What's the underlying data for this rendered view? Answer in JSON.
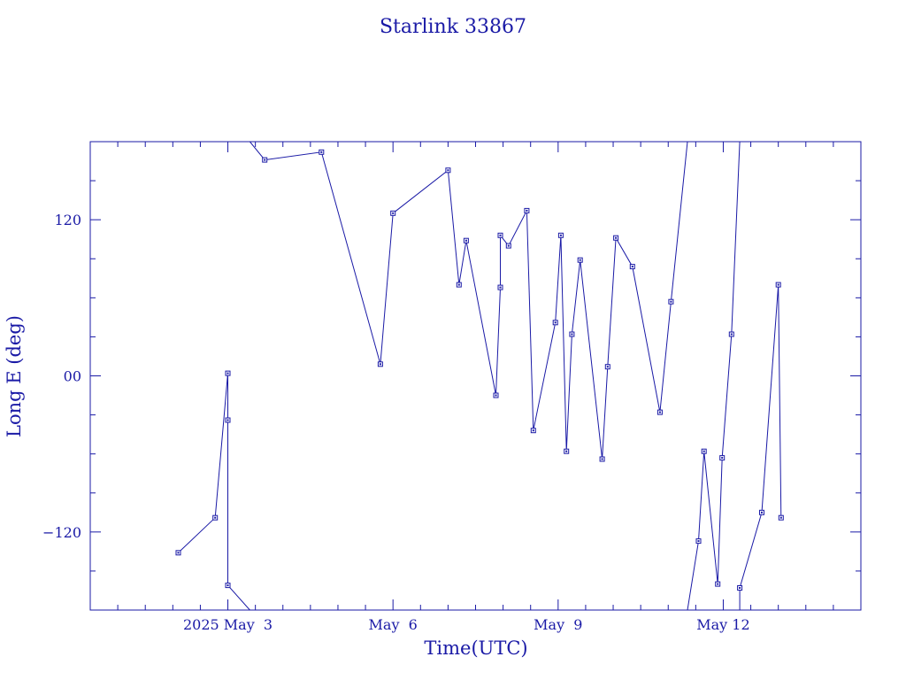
{
  "chart_data": {
    "type": "line",
    "title": "Starlink 33867",
    "xlabel": "Time(UTC)",
    "ylabel": "Long E (deg)",
    "x_unit": "days after 2025 May 3 00:00 UTC",
    "xlim": [
      -2.5,
      11.5
    ],
    "ylim": [
      -180,
      180
    ],
    "y_ticks": [
      {
        "value": 120,
        "label": "120"
      },
      {
        "value": 0,
        "label": "00"
      },
      {
        "value": -120,
        "label": "−120"
      }
    ],
    "x_ticks": [
      {
        "value": 0,
        "label": "2025 May  3"
      },
      {
        "value": 3,
        "label": "May  6"
      },
      {
        "value": 6,
        "label": "May  9"
      },
      {
        "value": 9,
        "label": "May 12"
      }
    ],
    "grid": false,
    "color": "#1a1aa6",
    "series": [
      {
        "points": [
          [
            -0.9,
            -136
          ],
          [
            -0.23,
            -109
          ],
          [
            0.0,
            2
          ],
          [
            0.0,
            -34
          ],
          [
            0.0,
            -161
          ],
          [
            0.4,
            -180
          ]
        ]
      },
      {
        "points": [
          [
            0.4,
            180
          ],
          [
            0.67,
            166
          ],
          [
            1.7,
            172
          ],
          [
            2.77,
            9
          ],
          [
            3.0,
            125
          ],
          [
            4.0,
            158
          ],
          [
            4.2,
            70
          ],
          [
            4.33,
            104
          ],
          [
            4.87,
            -15
          ],
          [
            4.95,
            68
          ],
          [
            4.95,
            108
          ],
          [
            5.1,
            100
          ],
          [
            5.43,
            127
          ],
          [
            5.55,
            -42
          ],
          [
            5.95,
            41
          ],
          [
            6.05,
            108
          ],
          [
            6.15,
            -58
          ],
          [
            6.25,
            32
          ],
          [
            6.4,
            89
          ],
          [
            6.8,
            -64
          ],
          [
            6.9,
            7
          ],
          [
            7.05,
            106
          ],
          [
            7.35,
            84
          ],
          [
            7.85,
            -28
          ],
          [
            8.05,
            57
          ],
          [
            8.35,
            180
          ]
        ]
      },
      {
        "points": [
          [
            8.35,
            -180
          ],
          [
            8.55,
            -127
          ],
          [
            8.65,
            -58
          ],
          [
            8.9,
            -160
          ],
          [
            8.98,
            -63
          ],
          [
            9.15,
            32
          ],
          [
            9.3,
            180
          ]
        ]
      },
      {
        "points": [
          [
            9.3,
            -180
          ],
          [
            9.3,
            -163
          ],
          [
            9.7,
            -105
          ],
          [
            10.0,
            70
          ],
          [
            10.05,
            -109
          ]
        ]
      }
    ]
  }
}
